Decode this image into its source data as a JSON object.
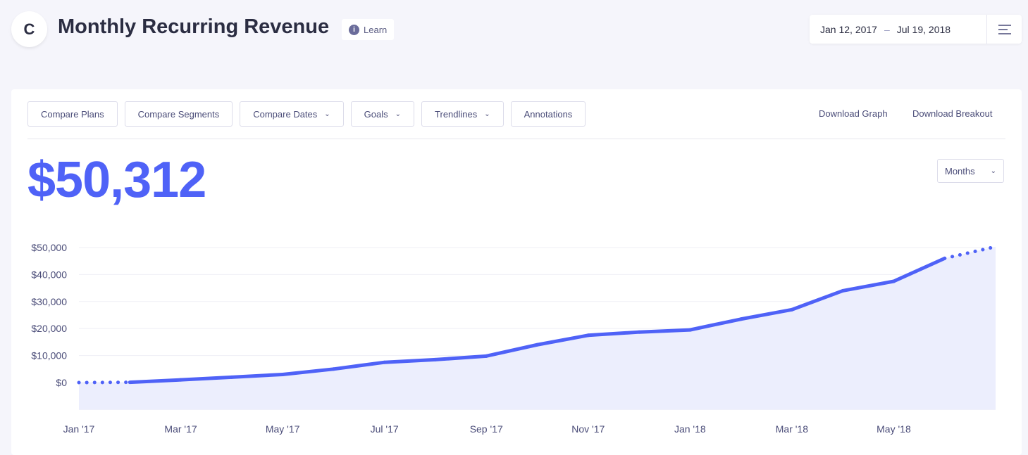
{
  "header": {
    "logo_letter": "C",
    "title": "Monthly Recurring Revenue",
    "learn_label": "Learn",
    "date_start": "Jan 12, 2017",
    "date_sep": "–",
    "date_end": "Jul 19, 2018"
  },
  "toolbar": {
    "buttons": [
      "Compare Plans",
      "Compare Segments",
      "Compare Dates",
      "Goals",
      "Trendlines",
      "Annotations"
    ],
    "download_graph": "Download Graph",
    "download_breakout": "Download Breakout"
  },
  "summary": {
    "value": "$50,312",
    "interval": "Months"
  },
  "colors": {
    "accent": "#4f62f7",
    "fill": "#eceefd"
  },
  "chart_data": {
    "type": "area",
    "title": "Monthly Recurring Revenue",
    "x": [
      "Jan '17",
      "Feb '17",
      "Mar '17",
      "Apr '17",
      "May '17",
      "Jun '17",
      "Jul '17",
      "Aug '17",
      "Sep '17",
      "Oct '17",
      "Nov '17",
      "Dec '17",
      "Jan '18",
      "Feb '18",
      "Mar '18",
      "Apr '18",
      "May '18",
      "Jun '18",
      "Jul '18"
    ],
    "values": [
      0,
      100,
      1000,
      2000,
      3000,
      5000,
      7500,
      8500,
      9800,
      14000,
      17500,
      18700,
      19500,
      23500,
      27000,
      34000,
      37500,
      46000,
      50312
    ],
    "dotted_segments": [
      [
        0,
        1
      ],
      [
        17,
        18
      ]
    ],
    "x_tick_labels": [
      "Jan '17",
      "Mar '17",
      "May '17",
      "Jul '17",
      "Sep '17",
      "Nov '17",
      "Jan '18",
      "Mar '18",
      "May '18"
    ],
    "y_tick_labels": [
      "$0",
      "$10,000",
      "$20,000",
      "$30,000",
      "$40,000",
      "$50,000"
    ],
    "y_ticks": [
      0,
      10000,
      20000,
      30000,
      40000,
      50000
    ],
    "ylim": [
      -10000,
      50000
    ],
    "grid": true
  }
}
